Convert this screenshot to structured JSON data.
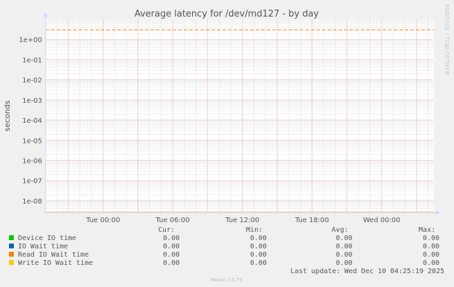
{
  "chart_data": {
    "type": "line",
    "title": "Average latency for /dev/md127 - by day",
    "ylabel": "seconds",
    "yscale": "log",
    "ylim": [
      2.6e-09,
      10
    ],
    "yticks": [
      {
        "value": 1,
        "label": "1e+00"
      },
      {
        "value": 0.1,
        "label": "1e-01"
      },
      {
        "value": 0.01,
        "label": "1e-02"
      },
      {
        "value": 0.001,
        "label": "1e-03"
      },
      {
        "value": 0.0001,
        "label": "1e-04"
      },
      {
        "value": 1e-05,
        "label": "1e-05"
      },
      {
        "value": 1e-06,
        "label": "1e-06"
      },
      {
        "value": 1e-07,
        "label": "1e-07"
      },
      {
        "value": 1e-08,
        "label": "1e-08"
      }
    ],
    "xlim_hours": [
      -4.95,
      28.5
    ],
    "xticks": [
      {
        "hour": 0,
        "label": "Tue 00:00"
      },
      {
        "hour": 6,
        "label": "Tue 06:00"
      },
      {
        "hour": 12,
        "label": "Tue 12:00"
      },
      {
        "hour": 18,
        "label": "Tue 18:00"
      },
      {
        "hour": 24,
        "label": "Wed 00:00"
      }
    ],
    "grid": true,
    "reference_line": {
      "value": 3,
      "color": "#ff7f00",
      "style": "dashed"
    },
    "series": [
      {
        "name": "Device IO time",
        "color": "#00cc00",
        "cur": "0.00",
        "min": "0.00",
        "avg": "0.00",
        "max": "0.00"
      },
      {
        "name": "IO Wait time",
        "color": "#0066b3",
        "cur": "0.00",
        "min": "0.00",
        "avg": "0.00",
        "max": "0.00"
      },
      {
        "name": "Read IO Wait time",
        "color": "#ff8000",
        "cur": "0.00",
        "min": "0.00",
        "avg": "0.00",
        "max": "0.00"
      },
      {
        "name": "Write IO Wait time",
        "color": "#ffcc00",
        "cur": "0.00",
        "min": "0.00",
        "avg": "0.00",
        "max": "0.00"
      }
    ]
  },
  "legend_headers": {
    "cur": "Cur:",
    "min": "Min:",
    "avg": "Avg:",
    "max": "Max:"
  },
  "last_update": "Last update: Wed Dec 10 04:25:19 2025",
  "footer": "Munin 2.0.73",
  "watermark": "RRDTOOL / TOBI OETIKER"
}
